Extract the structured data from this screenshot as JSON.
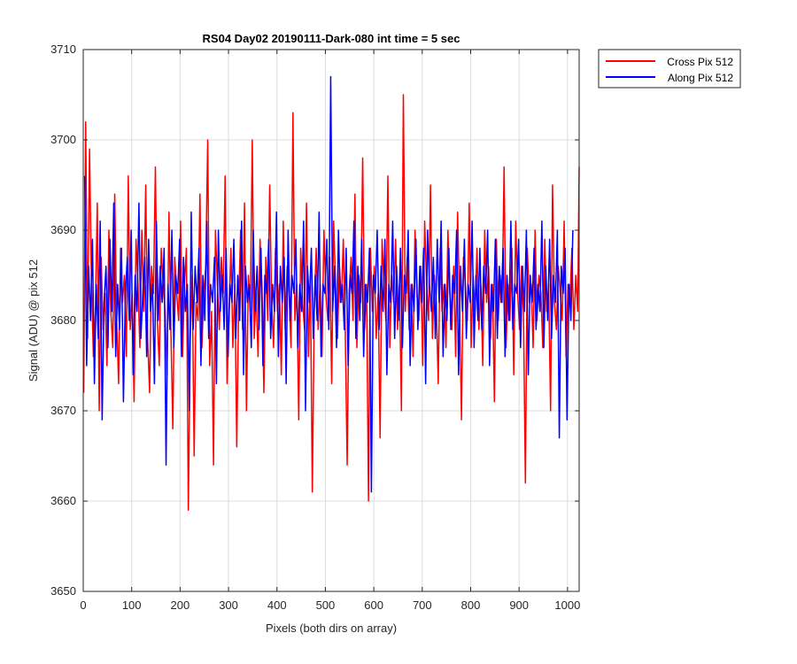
{
  "chart_data": {
    "type": "line",
    "title": "RS04 Day02 20190111-Dark-080 int time = 5 sec",
    "xlabel": "Pixels (both dirs on array)",
    "ylabel": "Signal (ADU) @ pix 512",
    "xlim": [
      0,
      1024
    ],
    "ylim": [
      3650,
      3710
    ],
    "xticks": [
      "0",
      "100",
      "200",
      "300",
      "400",
      "500",
      "600",
      "700",
      "800",
      "900",
      "1000"
    ],
    "xtick_values": [
      0,
      100,
      200,
      300,
      400,
      500,
      600,
      700,
      800,
      900,
      1000
    ],
    "yticks": [
      "3650",
      "3660",
      "3670",
      "3680",
      "3690",
      "3700",
      "3710"
    ],
    "ytick_values": [
      3650,
      3660,
      3670,
      3680,
      3690,
      3700,
      3710
    ],
    "grid": true,
    "legend_position": "outside-top-right",
    "series": [
      {
        "name": "Cross Pix 512",
        "color": "#ff0000",
        "x_start": 1,
        "x_step": 4,
        "values": [
          3672,
          3702,
          3678,
          3699,
          3684,
          3676,
          3681,
          3693,
          3670,
          3687,
          3679,
          3683,
          3675,
          3690,
          3681,
          3677,
          3694,
          3680,
          3673,
          3688,
          3682,
          3685,
          3676,
          3696,
          3679,
          3683,
          3671,
          3689,
          3684,
          3677,
          3690,
          3681,
          3695,
          3678,
          3672,
          3686,
          3683,
          3697,
          3680,
          3675,
          3688,
          3684,
          3681,
          3674,
          3692,
          3679,
          3668,
          3687,
          3683,
          3680,
          3691,
          3676,
          3684,
          3688,
          3659,
          3678,
          3685,
          3665,
          3682,
          3680,
          3694,
          3677,
          3683,
          3686,
          3700,
          3675,
          3681,
          3664,
          3690,
          3684,
          3679,
          3687,
          3683,
          3696,
          3673,
          3681,
          3688,
          3677,
          3684,
          3666,
          3682,
          3690,
          3679,
          3693,
          3670,
          3685,
          3681,
          3700,
          3678,
          3683,
          3676,
          3689,
          3684,
          3672,
          3687,
          3680,
          3695,
          3682,
          3677,
          3688,
          3681,
          3684,
          3674,
          3691,
          3679,
          3686,
          3683,
          3677,
          3703,
          3680,
          3684,
          3669,
          3688,
          3682,
          3679,
          3693,
          3676,
          3685,
          3661,
          3681,
          3688,
          3679,
          3684,
          3676,
          3690,
          3683,
          3680,
          3687,
          3673,
          3691,
          3684,
          3678,
          3686,
          3682,
          3689,
          3679,
          3664,
          3683,
          3687,
          3680,
          3694,
          3677,
          3685,
          3682,
          3698,
          3679,
          3684,
          3660,
          3688,
          3681,
          3686,
          3678,
          3683,
          3667,
          3689,
          3684,
          3680,
          3696,
          3677,
          3685,
          3682,
          3689,
          3679,
          3684,
          3670,
          3705,
          3681,
          3687,
          3679,
          3684,
          3676,
          3690,
          3683,
          3680,
          3686,
          3675,
          3691,
          3684,
          3680,
          3695,
          3678,
          3685,
          3682,
          3673,
          3688,
          3681,
          3684,
          3677,
          3690,
          3683,
          3679,
          3686,
          3676,
          3692,
          3682,
          3669,
          3687,
          3684,
          3680,
          3693,
          3677,
          3685,
          3681,
          3688,
          3679,
          3684,
          3675,
          3690,
          3682,
          3686,
          3678,
          3684,
          3671,
          3689,
          3680,
          3685,
          3682,
          3697,
          3677,
          3684,
          3680,
          3688,
          3674,
          3691,
          3683,
          3679,
          3686,
          3681,
          3662,
          3688,
          3682,
          3684,
          3677,
          3690,
          3680,
          3685,
          3683,
          3677,
          3689,
          3681,
          3684,
          3670,
          3695,
          3682,
          3679,
          3686,
          3683,
          3680,
          3691,
          3676,
          3684,
          3682,
          3688,
          3679,
          3685,
          3681,
          3697
        ]
      },
      {
        "name": "Along Pix 512",
        "color": "#0000ff",
        "x_start": 3,
        "x_step": 4,
        "values": [
          3696,
          3675,
          3686,
          3680,
          3689,
          3673,
          3684,
          3678,
          3691,
          3669,
          3682,
          3686,
          3677,
          3689,
          3681,
          3693,
          3676,
          3684,
          3679,
          3688,
          3671,
          3683,
          3687,
          3680,
          3690,
          3674,
          3685,
          3681,
          3693,
          3678,
          3683,
          3687,
          3676,
          3689,
          3681,
          3684,
          3673,
          3691,
          3680,
          3686,
          3682,
          3688,
          3664,
          3684,
          3679,
          3690,
          3677,
          3685,
          3683,
          3689,
          3676,
          3687,
          3681,
          3684,
          3670,
          3692,
          3679,
          3686,
          3682,
          3688,
          3675,
          3685,
          3680,
          3691,
          3678,
          3684,
          3682,
          3687,
          3673,
          3690,
          3681,
          3685,
          3679,
          3688,
          3676,
          3684,
          3682,
          3689,
          3678,
          3685,
          3680,
          3691,
          3674,
          3686,
          3682,
          3684,
          3677,
          3690,
          3681,
          3686,
          3679,
          3688,
          3675,
          3685,
          3683,
          3689,
          3678,
          3684,
          3681,
          3692,
          3676,
          3686,
          3682,
          3687,
          3673,
          3690,
          3680,
          3685,
          3683,
          3689,
          3677,
          3684,
          3681,
          3691,
          3670,
          3686,
          3682,
          3688,
          3678,
          3685,
          3680,
          3692,
          3676,
          3684,
          3683,
          3689,
          3679,
          3707,
          3681,
          3686,
          3677,
          3690,
          3682,
          3684,
          3679,
          3688,
          3675,
          3685,
          3683,
          3691,
          3678,
          3686,
          3680,
          3689,
          3676,
          3684,
          3682,
          3688,
          3661,
          3685,
          3683,
          3690,
          3679,
          3686,
          3681,
          3689,
          3674,
          3684,
          3682,
          3691,
          3678,
          3686,
          3680,
          3688,
          3677,
          3685,
          3683,
          3690,
          3675,
          3684,
          3681,
          3689,
          3679,
          3686,
          3682,
          3688,
          3673,
          3690,
          3684,
          3681,
          3687,
          3678,
          3689,
          3682,
          3691,
          3676,
          3684,
          3680,
          3688,
          3679,
          3685,
          3683,
          3690,
          3674,
          3686,
          3681,
          3689,
          3678,
          3684,
          3682,
          3691,
          3677,
          3685,
          3680,
          3688,
          3679,
          3686,
          3683,
          3690,
          3675,
          3684,
          3681,
          3689,
          3678,
          3686,
          3682,
          3688,
          3676,
          3685,
          3680,
          3691,
          3679,
          3684,
          3683,
          3689,
          3677,
          3686,
          3681,
          3690,
          3674,
          3685,
          3682,
          3688,
          3679,
          3684,
          3681,
          3691,
          3677,
          3686,
          3680,
          3689,
          3678,
          3685,
          3682,
          3690,
          3667,
          3686,
          3683,
          3688,
          3669,
          3684,
          3680,
          3690
        ]
      }
    ]
  }
}
